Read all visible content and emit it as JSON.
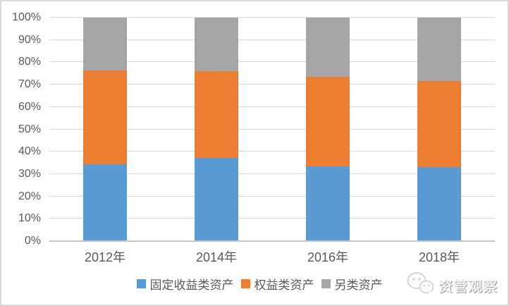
{
  "chart_data": {
    "type": "bar",
    "stacked": true,
    "percent_stacked": true,
    "title": "",
    "xlabel": "",
    "ylabel": "",
    "categories": [
      "2012年",
      "2014年",
      "2016年",
      "2018年"
    ],
    "series": [
      {
        "name": "固定收益类资产",
        "color": "#5B9BD5",
        "values": [
          34.3,
          37.3,
          33.6,
          33.0
        ]
      },
      {
        "name": "权益类资产",
        "color": "#ED7D31",
        "values": [
          42.1,
          38.7,
          39.9,
          38.5
        ]
      },
      {
        "name": "另类资产",
        "color": "#A5A5A5",
        "values": [
          23.6,
          24.0,
          26.5,
          28.5
        ]
      }
    ],
    "y_axis": {
      "min": 0,
      "max": 100,
      "step": 10,
      "tick_labels": [
        "0%",
        "10%",
        "20%",
        "30%",
        "40%",
        "50%",
        "60%",
        "70%",
        "80%",
        "90%",
        "100%"
      ]
    },
    "grid": true,
    "legend_position": "bottom"
  },
  "watermark": {
    "text": "资管观察",
    "logo": "chat-bubbles-icon"
  },
  "colors": {
    "gridline": "#D9D9D9",
    "axis_line": "#C6C6C6",
    "axis_label": "#595959",
    "background": "#FFFFFF",
    "border": "#D9D9D9"
  }
}
